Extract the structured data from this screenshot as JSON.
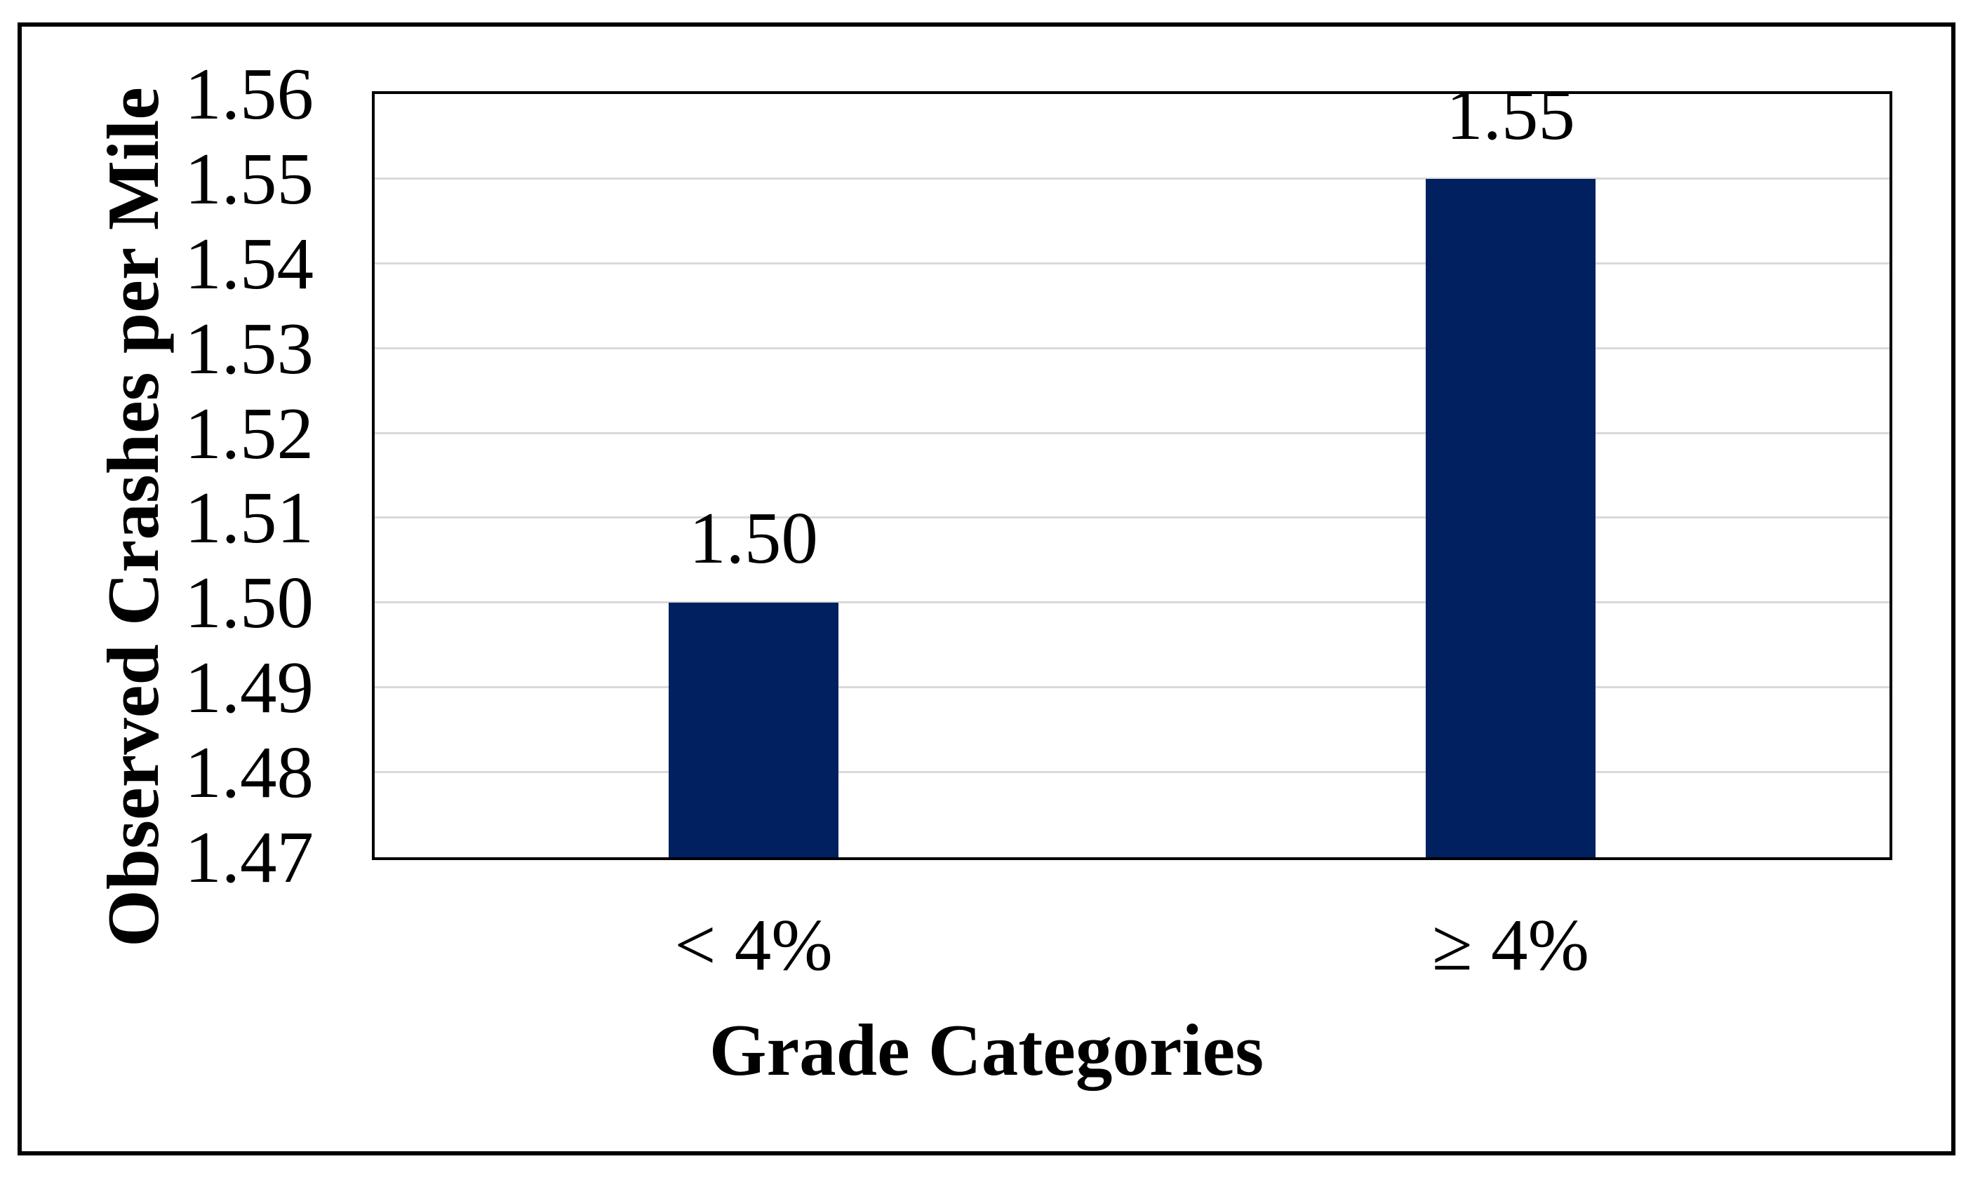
{
  "chart_data": {
    "type": "bar",
    "title": "",
    "categories": [
      "< 4%",
      "≥ 4%"
    ],
    "values": [
      1.5,
      1.55
    ],
    "value_labels": [
      "1.50",
      "1.55"
    ],
    "xlabel": "Grade Categories",
    "ylabel": "Observed Crashes per Mile",
    "ylim": [
      1.47,
      1.56
    ],
    "ytick_step": 0.01,
    "yticks": [
      "1.56",
      "1.55",
      "1.54",
      "1.53",
      "1.52",
      "1.51",
      "1.50",
      "1.49",
      "1.48",
      "1.47"
    ],
    "grid": "horizontal gridlines on, between min and max only",
    "legend": "none",
    "bar_color": "#002060",
    "gridline_color": "#D9D9D9",
    "plot_border_color": "#000000",
    "frame_border_color": "#000000"
  }
}
